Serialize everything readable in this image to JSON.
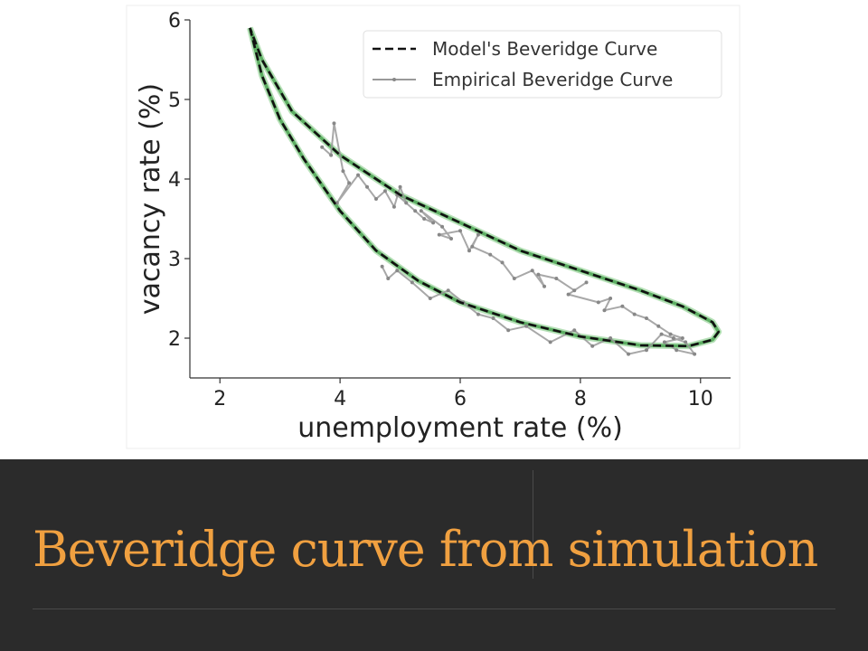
{
  "slide": {
    "title": "Beveridge curve from simulation",
    "title_color": "#f0a040",
    "band_color": "#2b2b2b"
  },
  "chart_data": {
    "type": "line",
    "xlabel": "unemployment rate (%)",
    "ylabel": "vacancy rate (%)",
    "xlim": [
      1.5,
      10.5
    ],
    "ylim": [
      1.5,
      6.0
    ],
    "xticks": [
      2,
      4,
      6,
      8,
      10
    ],
    "yticks": [
      2,
      3,
      4,
      5,
      6
    ],
    "grid": false,
    "legend_position": "top-right",
    "series": [
      {
        "name": "Model's Beveridge Curve",
        "style": "dashed",
        "color": "#111111",
        "x": [
          2.5,
          2.7,
          3.0,
          3.4,
          4.0,
          4.6,
          5.3,
          6.0,
          7.0,
          8.0,
          9.0,
          9.8,
          10.2,
          10.3,
          10.2,
          9.7,
          9.0,
          8.0,
          7.0,
          6.0,
          5.0,
          4.0,
          3.2,
          2.7,
          2.5
        ],
        "y": [
          5.9,
          5.3,
          4.75,
          4.25,
          3.6,
          3.1,
          2.72,
          2.45,
          2.2,
          2.02,
          1.91,
          1.9,
          1.98,
          2.08,
          2.2,
          2.4,
          2.6,
          2.85,
          3.1,
          3.45,
          3.8,
          4.3,
          4.85,
          5.5,
          5.9
        ]
      },
      {
        "name": "Empirical Beveridge Curve",
        "style": "solid-markers",
        "color": "#999999",
        "x": [
          3.7,
          3.85,
          3.9,
          4.05,
          4.15,
          3.95,
          4.3,
          4.45,
          4.6,
          4.75,
          4.9,
          5.0,
          5.1,
          4.95,
          5.25,
          5.4,
          5.55,
          5.35,
          5.7,
          5.85,
          5.65,
          6.0,
          6.15,
          6.3,
          6.2,
          6.5,
          6.7,
          6.9,
          7.2,
          7.4,
          7.3,
          7.6,
          7.9,
          8.1,
          7.8,
          8.3,
          8.5,
          8.4,
          8.7,
          8.9,
          9.1,
          9.3,
          9.5,
          9.7,
          9.4,
          9.6,
          9.9,
          9.75,
          9.55,
          9.35,
          9.1,
          8.8,
          8.5,
          8.2,
          7.9,
          7.5,
          7.1,
          6.8,
          6.55,
          6.3,
          6.05,
          5.8,
          5.5,
          5.2,
          4.95,
          4.8,
          4.7
        ],
        "y": [
          4.4,
          4.3,
          4.7,
          4.1,
          3.95,
          3.7,
          4.05,
          3.9,
          3.75,
          3.85,
          3.65,
          3.9,
          3.7,
          3.8,
          3.6,
          3.5,
          3.45,
          3.6,
          3.4,
          3.25,
          3.3,
          3.35,
          3.1,
          3.3,
          3.15,
          3.05,
          2.95,
          2.75,
          2.85,
          2.65,
          2.8,
          2.75,
          2.6,
          2.7,
          2.55,
          2.45,
          2.5,
          2.35,
          2.4,
          2.3,
          2.25,
          2.15,
          2.05,
          2.0,
          1.95,
          1.85,
          1.8,
          1.95,
          2.0,
          2.05,
          1.85,
          1.8,
          2.0,
          1.9,
          2.1,
          1.95,
          2.15,
          2.1,
          2.25,
          2.3,
          2.45,
          2.6,
          2.5,
          2.7,
          2.85,
          2.75,
          2.9
        ]
      },
      {
        "name": "",
        "style": "solid-band",
        "color": "#5cae62",
        "x": [
          2.5,
          2.7,
          3.0,
          3.4,
          4.0,
          4.6,
          5.3,
          6.0,
          7.0,
          8.0,
          9.0,
          9.8,
          10.2,
          10.3,
          10.2,
          9.7,
          9.0,
          8.0,
          7.0,
          6.0,
          5.0,
          4.0,
          3.2,
          2.7,
          2.5
        ],
        "y": [
          5.9,
          5.3,
          4.75,
          4.25,
          3.6,
          3.1,
          2.72,
          2.45,
          2.2,
          2.02,
          1.91,
          1.9,
          1.98,
          2.08,
          2.2,
          2.4,
          2.6,
          2.85,
          3.1,
          3.45,
          3.8,
          4.3,
          4.85,
          5.5,
          5.9
        ]
      }
    ]
  }
}
